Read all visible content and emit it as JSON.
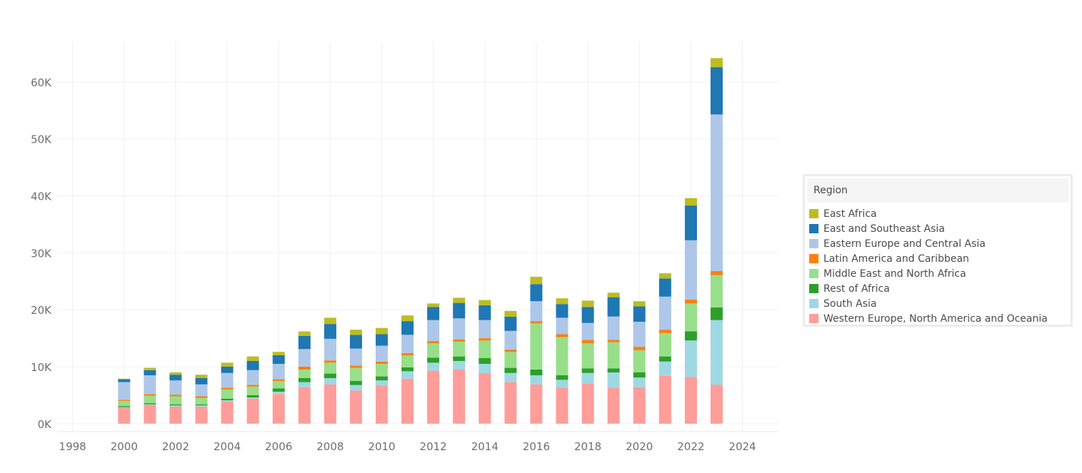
{
  "chart_data": {
    "type": "bar",
    "stacked": true,
    "title": "",
    "xlabel": "",
    "ylabel": "",
    "x_ticks": [
      "1998",
      "2000",
      "2002",
      "2004",
      "2006",
      "2008",
      "2010",
      "2012",
      "2014",
      "2016",
      "2018",
      "2020",
      "2022",
      "2024"
    ],
    "xlim": [
      1997.4,
      2025.4
    ],
    "y_ticks": [
      0,
      10000,
      20000,
      30000,
      40000,
      50000,
      60000
    ],
    "y_tick_labels": [
      "0K",
      "10K",
      "20K",
      "30K",
      "40K",
      "50K",
      "60K"
    ],
    "ylim": [
      -1400,
      67000
    ],
    "grid": true,
    "legend_placement": "right",
    "legend_title": "Region",
    "categories": [
      2000,
      2001,
      2002,
      2003,
      2004,
      2005,
      2006,
      2007,
      2008,
      2009,
      2010,
      2011,
      2012,
      2013,
      2014,
      2015,
      2016,
      2017,
      2018,
      2019,
      2020,
      2021,
      2022,
      2023
    ],
    "series": [
      {
        "name": "Western Europe, North America and Oceania",
        "color": "#ff9d9a",
        "values": [
          2800,
          3300,
          3000,
          3000,
          3900,
          4400,
          5200,
          6400,
          6900,
          5800,
          6700,
          7900,
          9300,
          9500,
          8900,
          7300,
          6900,
          6300,
          7000,
          6300,
          6400,
          8400,
          8200,
          6800
        ]
      },
      {
        "name": "South Asia",
        "color": "#9fd8e3",
        "values": [
          100,
          100,
          200,
          200,
          200,
          200,
          400,
          900,
          1100,
          1000,
          900,
          1300,
          1400,
          1500,
          1600,
          1600,
          1600,
          1400,
          1900,
          2700,
          1700,
          2500,
          6400,
          11400
        ]
      },
      {
        "name": "Rest of Africa",
        "color": "#2ca02c",
        "values": [
          200,
          200,
          200,
          200,
          300,
          400,
          600,
          700,
          800,
          700,
          700,
          700,
          900,
          800,
          1000,
          900,
          1000,
          800,
          800,
          700,
          900,
          900,
          1600,
          2200
        ]
      },
      {
        "name": "Middle East and North Africa",
        "color": "#98df8a",
        "values": [
          900,
          1300,
          1400,
          1100,
          1600,
          1500,
          1300,
          1500,
          1900,
          2300,
          2200,
          2100,
          2500,
          2600,
          3100,
          2800,
          8100,
          6700,
          4400,
          4600,
          3900,
          4100,
          4900,
          5700
        ]
      },
      {
        "name": "Latin America and Caribbean",
        "color": "#ff7f0e",
        "values": [
          200,
          300,
          300,
          300,
          300,
          300,
          300,
          500,
          400,
          400,
          400,
          400,
          400,
          400,
          400,
          400,
          400,
          500,
          600,
          400,
          600,
          600,
          700,
          700
        ]
      },
      {
        "name": "Eastern Europe and Central Asia",
        "color": "#aec7e8",
        "values": [
          3100,
          3300,
          2500,
          2100,
          2600,
          2600,
          2700,
          3100,
          3800,
          3000,
          2800,
          3200,
          3700,
          3700,
          3200,
          3300,
          3500,
          2900,
          3000,
          4100,
          4400,
          5800,
          10400,
          27500
        ]
      },
      {
        "name": "East and Southeast Asia",
        "color": "#1f77b4",
        "values": [
          500,
          900,
          1000,
          1100,
          1100,
          1600,
          1500,
          2300,
          2600,
          2400,
          2000,
          2400,
          2300,
          2700,
          2600,
          2500,
          3000,
          2400,
          2800,
          3400,
          2700,
          3200,
          6100,
          8300
        ]
      },
      {
        "name": "East Africa",
        "color": "#bcbd22",
        "values": [
          100,
          400,
          400,
          600,
          700,
          800,
          600,
          800,
          1100,
          900,
          1100,
          1000,
          600,
          900,
          900,
          1000,
          1300,
          1000,
          1100,
          800,
          900,
          900,
          1300,
          1600
        ]
      }
    ]
  },
  "legend_order": [
    "East Africa",
    "East and Southeast Asia",
    "Eastern Europe and Central Asia",
    "Latin America and Caribbean",
    "Middle East and North Africa",
    "Rest of Africa",
    "South Asia",
    "Western Europe, North America and Oceania"
  ]
}
